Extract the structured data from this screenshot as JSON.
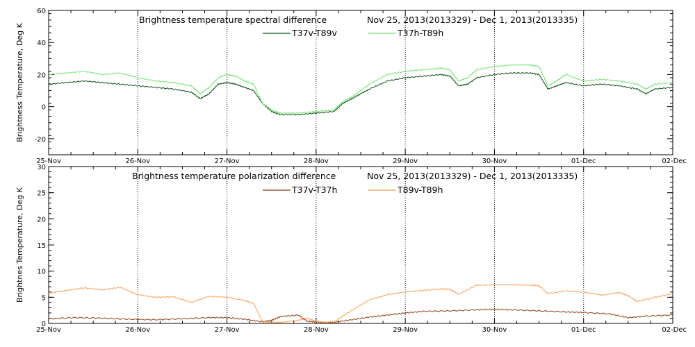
{
  "chart_data": [
    {
      "type": "line",
      "title_left": "Brightness temperature spectral difference",
      "title_right": "Nov 25, 2013(2013329) - Dec  1, 2013(2013335)",
      "ylabel": "Brightness Temperature, Deg K",
      "xlabel": "",
      "ylim": [
        -30,
        60
      ],
      "yticks": [
        -20,
        0,
        20,
        40,
        60
      ],
      "xlim": [
        0,
        7
      ],
      "xtick_labels": [
        "25-Nov",
        "26-Nov",
        "27-Nov",
        "28-Nov",
        "29-Nov",
        "30-Nov",
        "01-Dec",
        "02-Dec"
      ],
      "grid": "vertical-dotted",
      "legend": "top-center",
      "series": [
        {
          "name": "T37v-T89v",
          "color": "#0b4d12",
          "x": [
            0,
            0.2,
            0.4,
            0.6,
            0.8,
            1.0,
            1.2,
            1.4,
            1.6,
            1.7,
            1.8,
            1.9,
            2.0,
            2.1,
            2.2,
            2.3,
            2.4,
            2.5,
            2.6,
            2.8,
            3.0,
            3.2,
            3.3,
            3.4,
            3.5,
            3.6,
            3.8,
            4.0,
            4.2,
            4.4,
            4.5,
            4.6,
            4.7,
            4.8,
            5.0,
            5.2,
            5.4,
            5.5,
            5.6,
            5.7,
            5.8,
            6.0,
            6.2,
            6.4,
            6.6,
            6.7,
            6.8,
            7.0
          ],
          "y": [
            14,
            15,
            16,
            15,
            14,
            13,
            12,
            11,
            9,
            5,
            8,
            14,
            15,
            14,
            12,
            10,
            2,
            -3,
            -5,
            -5,
            -4,
            -3,
            2,
            5,
            8,
            11,
            16,
            18,
            19,
            20,
            19,
            13,
            14,
            18,
            20,
            21,
            21,
            20,
            11,
            13,
            15,
            13,
            14,
            13,
            11,
            8,
            11,
            12
          ]
        },
        {
          "name": "T37h-T89h",
          "color": "#6fe26f",
          "x": [
            0,
            0.2,
            0.4,
            0.6,
            0.8,
            1.0,
            1.2,
            1.4,
            1.6,
            1.7,
            1.8,
            1.9,
            2.0,
            2.1,
            2.2,
            2.3,
            2.4,
            2.5,
            2.6,
            2.8,
            3.0,
            3.2,
            3.3,
            3.4,
            3.5,
            3.6,
            3.8,
            4.0,
            4.2,
            4.4,
            4.5,
            4.6,
            4.7,
            4.8,
            5.0,
            5.2,
            5.4,
            5.5,
            5.6,
            5.7,
            5.8,
            6.0,
            6.2,
            6.4,
            6.6,
            6.7,
            6.8,
            7.0
          ],
          "y": [
            20,
            21,
            22,
            20,
            21,
            18,
            16,
            15,
            13,
            8,
            12,
            18,
            20,
            19,
            16,
            14,
            2,
            -2,
            -4,
            -4,
            -3,
            -2,
            3,
            6,
            10,
            14,
            20,
            22,
            23,
            24,
            23,
            16,
            18,
            23,
            25,
            26,
            26,
            25,
            13,
            16,
            20,
            16,
            17,
            16,
            14,
            11,
            14,
            15
          ]
        }
      ]
    },
    {
      "type": "line",
      "title_left": "Brightness temperature polarization difference",
      "title_right": "Nov 25, 2013(2013329) - Dec  1, 2013(2013335)",
      "ylabel": "Brightnes Temperature, Deg K",
      "xlabel": "",
      "ylim": [
        0,
        30
      ],
      "yticks": [
        0,
        5,
        10,
        15,
        20,
        25,
        30
      ],
      "xlim": [
        0,
        7
      ],
      "xtick_labels": [
        "25-Nov",
        "26-Nov",
        "27-Nov",
        "28-Nov",
        "29-Nov",
        "30-Nov",
        "01-Dec",
        "02-Dec"
      ],
      "grid": "vertical-dotted",
      "legend": "top-center",
      "series": [
        {
          "name": "T37v-T37h",
          "color": "#8b3a0f",
          "x": [
            0,
            0.3,
            0.6,
            0.9,
            1.2,
            1.5,
            1.8,
            2.0,
            2.2,
            2.4,
            2.5,
            2.6,
            2.8,
            2.9,
            3.0,
            3.1,
            3.2,
            3.4,
            3.6,
            3.8,
            4.0,
            4.2,
            4.5,
            4.8,
            5.0,
            5.2,
            5.5,
            5.8,
            6.0,
            6.3,
            6.5,
            6.7,
            7.0
          ],
          "y": [
            0.9,
            1.1,
            1.0,
            0.8,
            0.7,
            0.9,
            1.1,
            1.1,
            0.8,
            0.3,
            0.6,
            1.3,
            1.6,
            0.4,
            0.3,
            0.1,
            0.2,
            0.7,
            1.2,
            1.6,
            2.0,
            2.3,
            2.4,
            2.6,
            2.7,
            2.6,
            2.4,
            2.2,
            2.1,
            1.8,
            1.1,
            1.4,
            1.6
          ]
        },
        {
          "name": "T89v-T89h",
          "color": "#f4a05a",
          "x": [
            0,
            0.2,
            0.4,
            0.6,
            0.8,
            1.0,
            1.2,
            1.4,
            1.6,
            1.8,
            2.0,
            2.2,
            2.3,
            2.4,
            2.5,
            2.6,
            2.8,
            2.9,
            3.0,
            3.1,
            3.2,
            3.4,
            3.6,
            3.8,
            4.0,
            4.2,
            4.4,
            4.5,
            4.6,
            4.8,
            5.0,
            5.2,
            5.4,
            5.5,
            5.6,
            5.8,
            6.0,
            6.2,
            6.4,
            6.5,
            6.6,
            6.8,
            7.0
          ],
          "y": [
            5.8,
            6.3,
            6.8,
            6.4,
            6.9,
            5.5,
            5.0,
            5.1,
            4.0,
            5.2,
            5.0,
            4.4,
            3.8,
            0.3,
            0.2,
            0.2,
            0.6,
            1.0,
            0.4,
            0.2,
            0.3,
            2.5,
            4.5,
            5.5,
            6.0,
            6.3,
            6.6,
            6.5,
            5.6,
            7.3,
            7.4,
            7.4,
            7.3,
            7.2,
            5.7,
            6.2,
            6.0,
            5.4,
            5.9,
            5.3,
            4.2,
            5.0,
            5.7
          ]
        }
      ]
    }
  ]
}
